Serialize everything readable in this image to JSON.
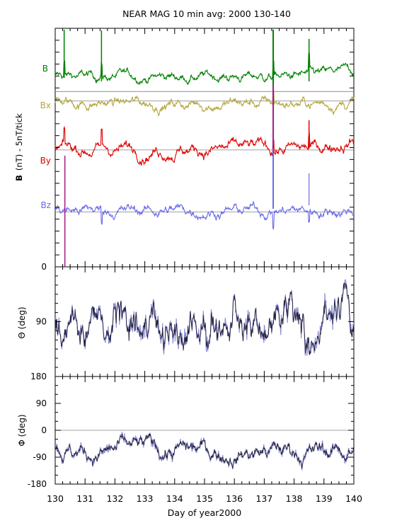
{
  "title": "NEAR MAG 10 min avg: 2000 130-140",
  "xlabel": "Day of year2000",
  "x_ticks": [
    "130",
    "131",
    "132",
    "133",
    "134",
    "135",
    "136",
    "137",
    "138",
    "139",
    "140"
  ],
  "colors": {
    "B": "#008000",
    "Bx": "#b5a642",
    "By": "#e00000",
    "Bz": "#6a6ae8",
    "angle_line": "#20203a",
    "angle_shade": "#8a8ad8",
    "spike_magenta": "#a01a8a",
    "baseline": "#808080",
    "axis": "#000000"
  },
  "chart_data": [
    {
      "type": "line",
      "panel": "field",
      "ylabel_bold": "B",
      "ylabel_rest": "(nT) - 5nT/tick",
      "ytick_label": "0",
      "xlim": [
        130,
        140
      ],
      "series": [
        {
          "name": "B",
          "label": "B",
          "offset_ticks": 14.7,
          "level": 2.8,
          "noise": 0.3,
          "trend": 0.9
        },
        {
          "name": "Bx",
          "label": "Bx",
          "offset_ticks": 13.9,
          "level": -0.4,
          "noise": 0.35,
          "trend": 0.3
        },
        {
          "name": "By",
          "label": "By",
          "offset_ticks": 9.8,
          "level": 0.2,
          "noise": 0.4,
          "trend": 1.8
        },
        {
          "name": "Bz",
          "label": "Bz",
          "offset_ticks": 4.6,
          "level": 0.3,
          "noise": 0.35,
          "trend": 0.2
        }
      ],
      "spikes": [
        {
          "day": 130.3,
          "series": [
            "B",
            "By"
          ]
        },
        {
          "day": 131.55,
          "series": [
            "B",
            "By",
            "Bz"
          ]
        },
        {
          "day": 137.3,
          "series": [
            "B",
            "Bx",
            "By",
            "Bz"
          ]
        },
        {
          "day": 138.5,
          "series": [
            "B",
            "By",
            "Bz"
          ]
        }
      ]
    },
    {
      "type": "line",
      "panel": "theta",
      "ylabel": "Θ (deg)",
      "ylim": [
        180,
        0
      ],
      "yticks": [
        90
      ],
      "xlim": [
        130,
        140
      ]
    },
    {
      "type": "line",
      "panel": "phi",
      "ylabel": "Φ (deg)",
      "ylim": [
        -180,
        180
      ],
      "yticks": [
        180,
        90,
        0,
        -90,
        -180
      ],
      "xlim": [
        130,
        140
      ]
    }
  ]
}
